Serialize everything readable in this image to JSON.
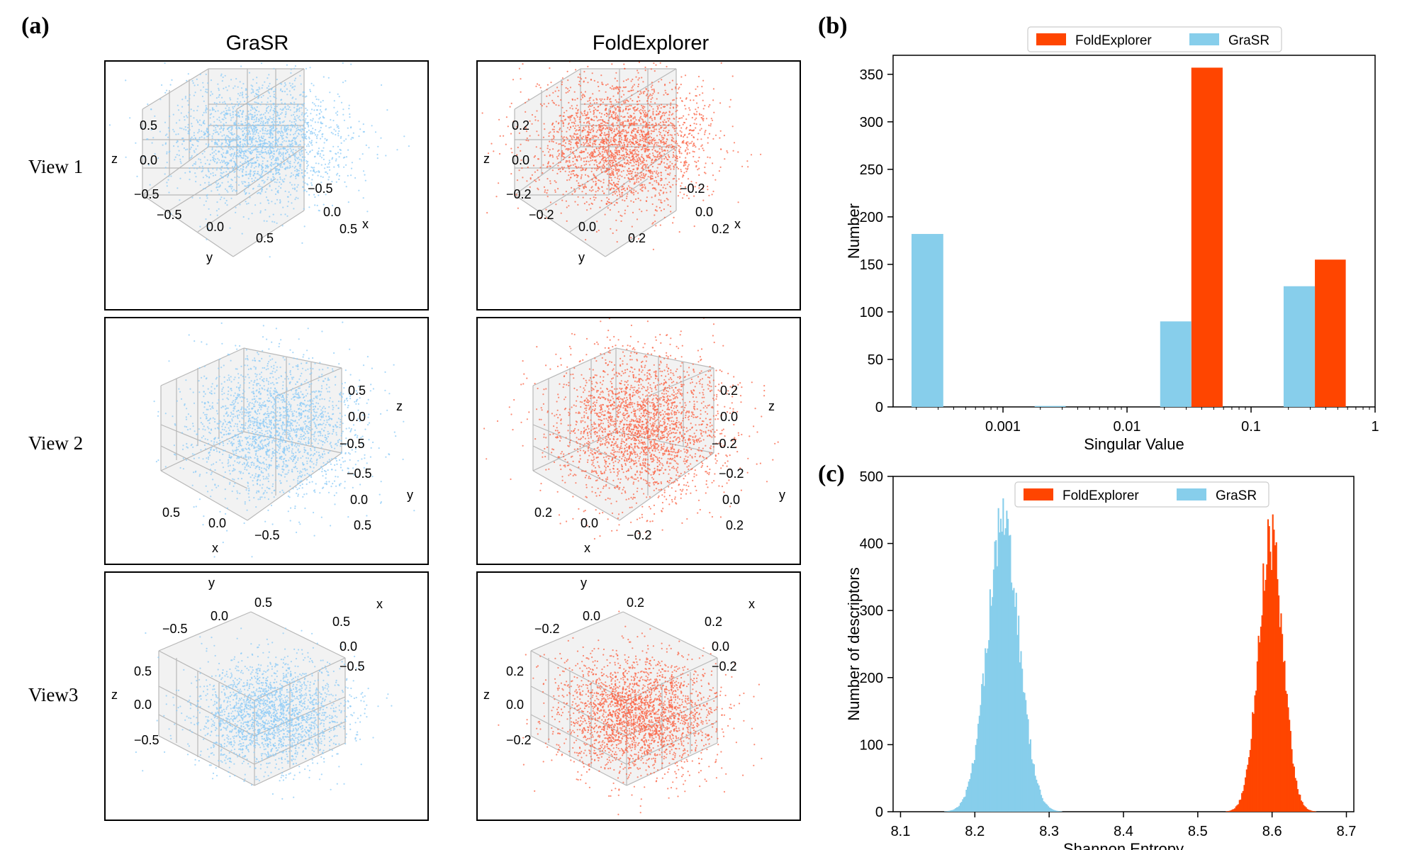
{
  "panel_labels": {
    "a": "(a)",
    "b": "(b)",
    "c": "(c)"
  },
  "panel_a": {
    "col_titles": [
      "GraSR",
      "FoldExplorer"
    ],
    "view_labels": [
      "View 1",
      "View 2",
      "View3"
    ],
    "colors": {
      "GraSR": "#8ccbf7",
      "FoldExplorer": "#fb6446"
    },
    "cells": [
      {
        "labels": [
          {
            "t": "0.5"
          },
          {
            "t": "0.0"
          },
          {
            "t": "−0.5"
          },
          {
            "t": "z"
          },
          {
            "t": "−0.5"
          },
          {
            "t": "0.0"
          },
          {
            "t": "0.5"
          },
          {
            "t": "y"
          },
          {
            "t": "−0.5"
          },
          {
            "t": "0.0"
          },
          {
            "t": "0.5"
          },
          {
            "t": "x"
          }
        ]
      },
      {
        "labels": [
          {
            "t": "0.2"
          },
          {
            "t": "0.0"
          },
          {
            "t": "−0.2"
          },
          {
            "t": "z"
          },
          {
            "t": "−0.2"
          },
          {
            "t": "0.0"
          },
          {
            "t": "0.2"
          },
          {
            "t": "y"
          },
          {
            "t": "−0.2"
          },
          {
            "t": "0.0"
          },
          {
            "t": "0.2"
          },
          {
            "t": "x"
          }
        ]
      },
      {
        "labels": [
          {
            "t": "0.5"
          },
          {
            "t": "0.0"
          },
          {
            "t": "−0.5"
          },
          {
            "t": "z"
          },
          {
            "t": "0.5"
          },
          {
            "t": "0.0"
          },
          {
            "t": "−0.5"
          },
          {
            "t": "x"
          },
          {
            "t": "−0.5"
          },
          {
            "t": "0.0"
          },
          {
            "t": "0.5"
          },
          {
            "t": "y"
          }
        ]
      },
      {
        "labels": [
          {
            "t": "0.2"
          },
          {
            "t": "0.0"
          },
          {
            "t": "−0.2"
          },
          {
            "t": "z"
          },
          {
            "t": "0.2"
          },
          {
            "t": "0.0"
          },
          {
            "t": "−0.2"
          },
          {
            "t": "x"
          },
          {
            "t": "−0.2"
          },
          {
            "t": "0.0"
          },
          {
            "t": "0.2"
          },
          {
            "t": "y"
          }
        ]
      },
      {
        "labels": [
          {
            "t": "y"
          },
          {
            "t": "−0.5"
          },
          {
            "t": "0.0"
          },
          {
            "t": "0.5"
          },
          {
            "t": "x"
          },
          {
            "t": "0.5"
          },
          {
            "t": "0.0"
          },
          {
            "t": "−0.5"
          },
          {
            "t": "z"
          },
          {
            "t": "0.5"
          },
          {
            "t": "0.0"
          },
          {
            "t": "−0.5"
          }
        ]
      },
      {
        "labels": [
          {
            "t": "y"
          },
          {
            "t": "−0.2"
          },
          {
            "t": "0.0"
          },
          {
            "t": "0.2"
          },
          {
            "t": "x"
          },
          {
            "t": "0.2"
          },
          {
            "t": "0.0"
          },
          {
            "t": "−0.2"
          },
          {
            "t": "z"
          },
          {
            "t": "0.2"
          },
          {
            "t": "0.0"
          },
          {
            "t": "−0.2"
          }
        ]
      }
    ]
  },
  "chart_data": [
    {
      "id": "b",
      "type": "bar",
      "xscale": "log",
      "xlabel": "Singular Value",
      "ylabel": "Number",
      "ylim": [
        0,
        370
      ],
      "yticks": [
        0,
        50,
        100,
        150,
        200,
        250,
        300,
        350
      ],
      "xticks": [
        {
          "v": 0.001,
          "label": "0.001"
        },
        {
          "v": 0.01,
          "label": "0.01"
        },
        {
          "v": 0.1,
          "label": "0.1"
        },
        {
          "v": 1,
          "label": "1"
        }
      ],
      "legend": {
        "placement": "top-center"
      },
      "series": [
        {
          "name": "FoldExplorer",
          "color": "#ff4500",
          "bars": [
            {
              "x0": 0.033,
              "x1": 0.059,
              "value": 357
            },
            {
              "x0": 0.327,
              "x1": 0.58,
              "value": 155
            }
          ]
        },
        {
          "name": "GraSR",
          "color": "#87ceeb",
          "bars": [
            {
              "x0": 0.000183,
              "x1": 0.00033,
              "value": 182
            },
            {
              "x0": 0.0018,
              "x1": 0.0032,
              "value": 1
            },
            {
              "x0": 0.0185,
              "x1": 0.033,
              "value": 90
            },
            {
              "x0": 0.183,
              "x1": 0.327,
              "value": 127
            }
          ]
        }
      ]
    },
    {
      "id": "c",
      "type": "histogram",
      "xlabel": "Shannon Entropy",
      "ylabel": "Number of descriptors",
      "xlim": [
        8.09,
        8.71
      ],
      "ylim": [
        0,
        500
      ],
      "xticks": [
        {
          "v": 8.1,
          "label": "8.1"
        },
        {
          "v": 8.2,
          "label": "8.2"
        },
        {
          "v": 8.3,
          "label": "8.3"
        },
        {
          "v": 8.4,
          "label": "8.4"
        },
        {
          "v": 8.5,
          "label": "8.5"
        },
        {
          "v": 8.6,
          "label": "8.6"
        },
        {
          "v": 8.7,
          "label": "8.7"
        }
      ],
      "yticks": [
        0,
        100,
        200,
        300,
        400,
        500
      ],
      "legend": {
        "placement": "top-center"
      },
      "series": [
        {
          "name": "FoldExplorer",
          "color": "#ff4500",
          "mean": 8.598,
          "std": 0.0165,
          "peak": 420,
          "range": [
            8.52,
            8.68
          ]
        },
        {
          "name": "GraSR",
          "color": "#87ceeb",
          "mean": 8.238,
          "std": 0.0215,
          "peak": 440,
          "range": [
            8.13,
            8.34
          ]
        }
      ]
    }
  ]
}
